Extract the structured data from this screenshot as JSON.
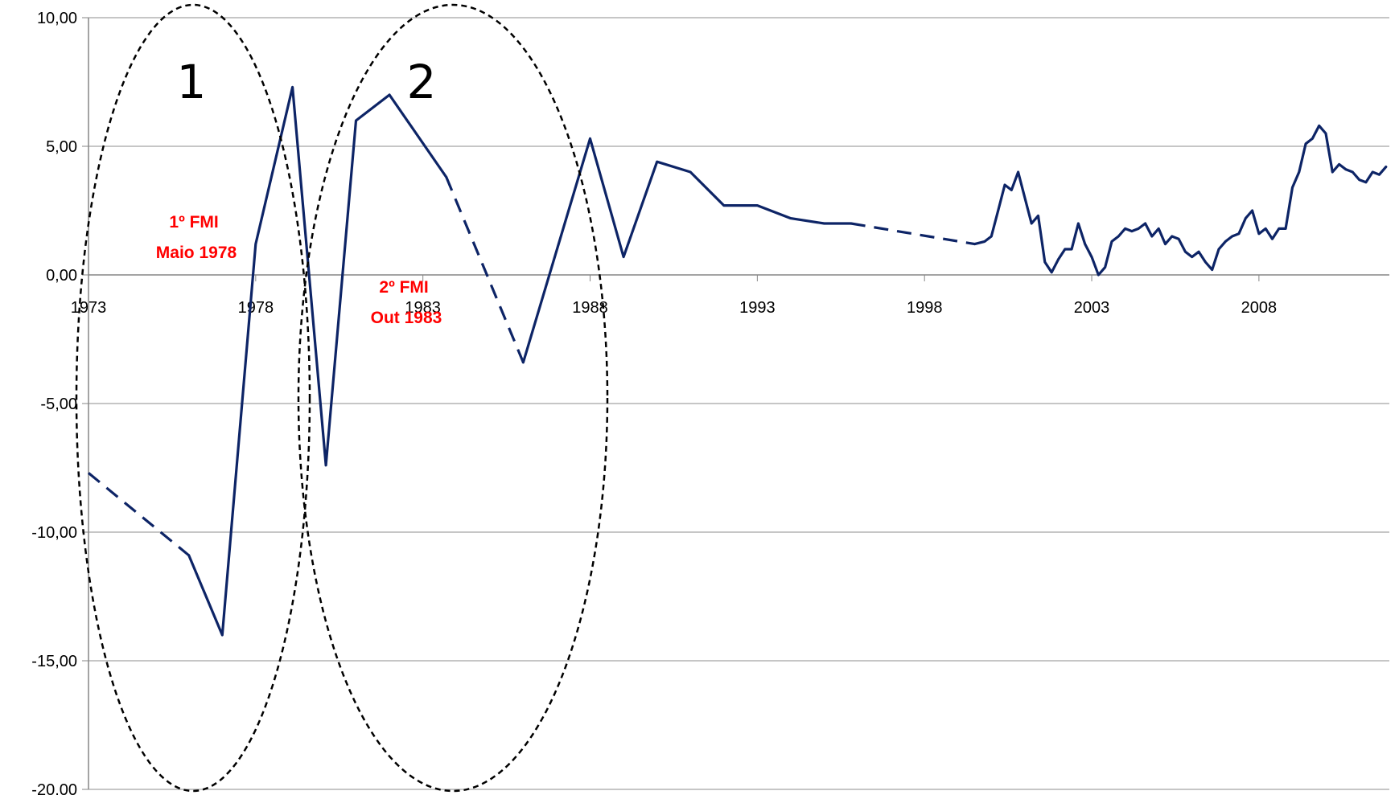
{
  "chart_data": {
    "type": "line",
    "title": "",
    "xlabel": "",
    "ylabel": "",
    "xlim": [
      1973,
      2011.9
    ],
    "ylim": [
      -20,
      10
    ],
    "yticks": [
      10,
      5,
      0,
      -5,
      -10,
      -15,
      -20
    ],
    "ytick_labels": [
      "10,00",
      "5,00",
      "0,00",
      "-5,00",
      "-10,00",
      "-15,00",
      "-20,00"
    ],
    "xticks": [
      1973,
      1978,
      1983,
      1988,
      1993,
      1998,
      2003,
      2008
    ],
    "xtick_labels": [
      "1973",
      "1978",
      "1983",
      "1988",
      "1993",
      "1998",
      "2003",
      "2008"
    ],
    "grid": "horizontal",
    "legend": "none",
    "series": [
      {
        "color": "#0d2466",
        "x": [
          1973.0,
          1976.0,
          1977.0,
          1978.0,
          1979.1,
          1980.1,
          1981.0,
          1982.0,
          1983.7,
          1986.0,
          1988.0,
          1989.0,
          1990.0,
          1991.0,
          1992.0,
          1993.0,
          1994.0,
          1995.0,
          1995.8,
          1999.5,
          1999.8,
          2000.0,
          2000.2,
          2000.4,
          2000.6,
          2000.8,
          2001.0,
          2001.2,
          2001.4,
          2001.6,
          2001.8,
          2002.0,
          2002.2,
          2002.4,
          2002.6,
          2002.8,
          2003.0,
          2003.2,
          2003.4,
          2003.6,
          2003.8,
          2004.0,
          2004.2,
          2004.4,
          2004.6,
          2004.8,
          2005.0,
          2005.2,
          2005.4,
          2005.6,
          2005.8,
          2006.0,
          2006.2,
          2006.4,
          2006.6,
          2006.8,
          2007.0,
          2007.2,
          2007.4,
          2007.6,
          2007.8,
          2008.0,
          2008.2,
          2008.4,
          2008.6,
          2008.8,
          2009.0,
          2009.2,
          2009.4,
          2009.6,
          2009.8,
          2010.0,
          2010.2,
          2010.4,
          2010.6,
          2010.8,
          2011.0,
          2011.2,
          2011.4,
          2011.6,
          2011.8
        ],
        "y": [
          -7.7,
          -10.9,
          -14.0,
          1.2,
          7.3,
          -7.4,
          6.0,
          7.0,
          3.8,
          -3.4,
          5.3,
          0.7,
          4.4,
          4.0,
          2.7,
          2.7,
          2.2,
          2.0,
          2.0,
          1.2,
          1.3,
          1.5,
          2.5,
          3.5,
          3.3,
          4.0,
          3.0,
          2.0,
          2.3,
          0.5,
          0.1,
          0.6,
          1.0,
          1.0,
          2.0,
          1.2,
          0.7,
          0.0,
          0.3,
          1.3,
          1.5,
          1.8,
          1.7,
          1.8,
          2.0,
          1.5,
          1.8,
          1.2,
          1.5,
          1.4,
          0.9,
          0.7,
          0.9,
          0.5,
          0.2,
          1.0,
          1.3,
          1.5,
          1.6,
          2.2,
          2.5,
          1.6,
          1.8,
          1.4,
          1.8,
          1.8,
          3.4,
          4.0,
          5.1,
          5.3,
          5.8,
          5.5,
          4.0,
          4.3,
          4.1,
          4.0,
          3.7,
          3.6,
          4.0,
          3.9,
          4.2
        ]
      }
    ],
    "dashed_segments": [
      [
        0,
        1
      ],
      [
        8,
        9
      ],
      [
        18,
        19
      ]
    ],
    "annotations": [
      {
        "text": "1",
        "kind": "region"
      },
      {
        "text": "2",
        "kind": "region"
      },
      {
        "lines": [
          "1º FMI",
          "Maio  1978"
        ],
        "color": "#ff0000"
      },
      {
        "lines": [
          "2º FMI",
          "Out  1983"
        ],
        "color": "#ff0000"
      }
    ]
  }
}
